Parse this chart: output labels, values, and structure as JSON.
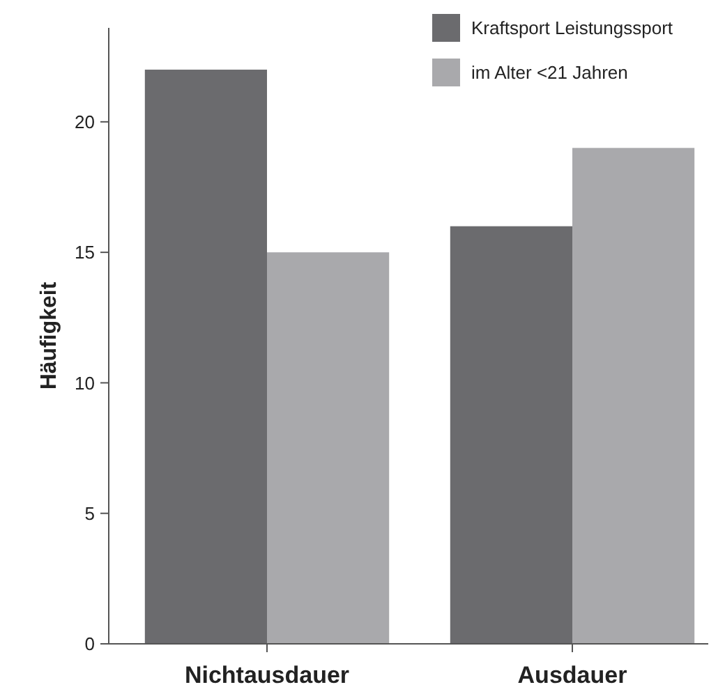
{
  "chart_data": {
    "type": "bar",
    "categories": [
      "Nichtausdauer",
      "Ausdauer"
    ],
    "ylabel": "Häufigkeit",
    "ylim": [
      0,
      23.6
    ],
    "yticks": [
      0,
      5,
      10,
      15,
      20
    ],
    "grid": false,
    "legend": "top right",
    "series": [
      {
        "name": "Kraftsport Leistungssport",
        "color": "#6b6b6e",
        "values": [
          22,
          16
        ]
      },
      {
        "name": "im Alter <21 Jahren",
        "color": "#a9a9ac",
        "values": [
          15,
          19
        ]
      }
    ]
  }
}
